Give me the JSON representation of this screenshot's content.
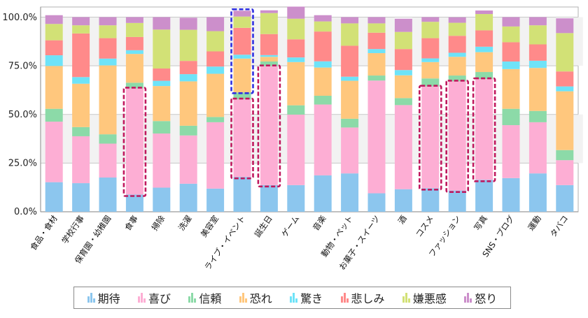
{
  "chart_data": {
    "type": "bar",
    "stacked": true,
    "percent": true,
    "title": "",
    "xlabel": "",
    "ylabel": "",
    "ylim": [
      0,
      100
    ],
    "yticks": [
      "0.0%",
      "25.0%",
      "50.0%",
      "75.0%",
      "100.0%"
    ],
    "grid": true,
    "legend_position": "bottom",
    "categories": [
      "食品・食材",
      "学校行事",
      "保育園・幼稚園",
      "食事",
      "掃除",
      "洗濯",
      "美容室",
      "ライブ・イベント",
      "誕生日",
      "ゲーム",
      "音楽",
      "動物・ペット",
      "お菓子・スイーツ",
      "酒",
      "コスメ",
      "ファッション",
      "写真",
      "SNS・ブログ",
      "運動",
      "タバコ"
    ],
    "series": [
      {
        "name": "期待",
        "color": "#8cc6ee",
        "values": [
          15.2,
          14.7,
          17.6,
          8.8,
          12.4,
          14.4,
          11.9,
          17.9,
          13.7,
          13.7,
          18.7,
          19.7,
          9.5,
          11.6,
          12.1,
          10.9,
          16.4,
          17.3,
          19.7,
          13.7
        ]
      },
      {
        "name": "喜び",
        "color": "#fdaed4",
        "values": [
          31.1,
          24.1,
          17.4,
          54.6,
          27.8,
          24.8,
          34.1,
          39.9,
          61.1,
          36.2,
          36.4,
          23.6,
          57.9,
          43.2,
          52.3,
          56.1,
          51.8,
          27.2,
          26.3,
          12.8
        ]
      },
      {
        "name": "信頼",
        "color": "#8cdaa8",
        "values": [
          6.6,
          4.7,
          4.8,
          2.9,
          6.4,
          5.0,
          2.7,
          3.5,
          2.4,
          4.8,
          4.5,
          4.5,
          2.6,
          3.6,
          4.1,
          3.0,
          3.6,
          8.4,
          5.8,
          5.2
        ]
      },
      {
        "name": "恐れ",
        "color": "#ffc77d",
        "values": [
          22.0,
          22.3,
          35.4,
          14.8,
          18.0,
          22.8,
          22.2,
          17.4,
          2.4,
          22.2,
          14.5,
          19.5,
          11.5,
          11.7,
          8.4,
          9.6,
          10.2,
          20.4,
          22.1,
          30.2
        ]
      },
      {
        "name": "驚き",
        "color": "#6ee3f8",
        "values": [
          5.5,
          3.4,
          3.5,
          1.9,
          2.7,
          3.7,
          3.7,
          2.0,
          0.9,
          2.4,
          3.2,
          2.1,
          2.1,
          2.7,
          1.9,
          2.1,
          2.8,
          3.9,
          3.7,
          2.5
        ]
      },
      {
        "name": "悲しみ",
        "color": "#ff8a8a",
        "values": [
          7.7,
          22.4,
          10.5,
          6.8,
          6.3,
          6.8,
          7.8,
          13.8,
          10.8,
          9.3,
          15.3,
          15.9,
          8.4,
          10.8,
          10.4,
          8.7,
          8.4,
          9.9,
          8.4,
          7.7
        ]
      },
      {
        "name": "嫌悪感",
        "color": "#d2e176",
        "values": [
          8.4,
          4.2,
          6.6,
          7.2,
          20.0,
          16.0,
          10.4,
          5.8,
          10.8,
          10.6,
          5.2,
          11.5,
          4.8,
          8.8,
          8.4,
          6.7,
          8.4,
          8.1,
          9.8,
          19.7
        ]
      },
      {
        "name": "怒り",
        "color": "#cc8fcb",
        "values": [
          4.5,
          4.2,
          4.2,
          3.0,
          6.4,
          6.2,
          7.2,
          3.0,
          1.4,
          6.2,
          3.2,
          3.2,
          3.2,
          6.8,
          2.4,
          2.8,
          1.8,
          4.8,
          4.2,
          7.6
        ]
      }
    ],
    "annotations": [
      {
        "type": "dashed-box",
        "color": "#c0185e",
        "category": "食事",
        "series": "喜び"
      },
      {
        "type": "dashed-box",
        "color": "#c0185e",
        "category": "ライブ・イベント",
        "series": "喜び"
      },
      {
        "type": "dashed-box",
        "color": "#c0185e",
        "category": "誕生日",
        "series": "喜び"
      },
      {
        "type": "dashed-box",
        "color": "#c0185e",
        "category": "コスメ",
        "series": "喜び"
      },
      {
        "type": "dashed-box",
        "color": "#c0185e",
        "category": "ファッション",
        "series": "喜び"
      },
      {
        "type": "dashed-box",
        "color": "#c0185e",
        "category": "写真",
        "series": "喜び"
      },
      {
        "type": "dashed-box",
        "color": "#2f2fe0",
        "category": "ライブ・イベント",
        "series_range": [
          "恐れ",
          "怒り"
        ]
      }
    ]
  },
  "legend": {
    "items": [
      {
        "label": "期待",
        "color": "#8cc6ee"
      },
      {
        "label": "喜び",
        "color": "#fdaed4"
      },
      {
        "label": "信頼",
        "color": "#8cdaa8"
      },
      {
        "label": "恐れ",
        "color": "#ffc77d"
      },
      {
        "label": "驚き",
        "color": "#6ee3f8"
      },
      {
        "label": "悲しみ",
        "color": "#ff8a8a"
      },
      {
        "label": "嫌悪感",
        "color": "#d2e176"
      },
      {
        "label": "怒り",
        "color": "#cc8fcb"
      }
    ]
  }
}
